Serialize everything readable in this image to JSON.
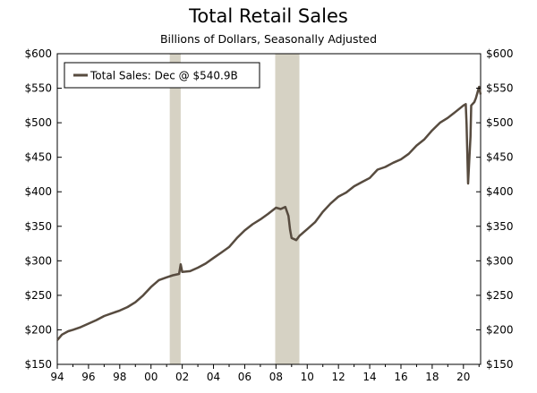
{
  "chart_data": {
    "type": "line",
    "title": "Total Retail Sales",
    "subtitle": "Billions of Dollars, Seasonally Adjusted",
    "xlabel": "",
    "ylabel": "",
    "xlim": [
      1994,
      2021.1
    ],
    "ylim": [
      150,
      600
    ],
    "x_ticks": [
      1994,
      1996,
      1998,
      2000,
      2002,
      2004,
      2006,
      2008,
      2010,
      2012,
      2014,
      2016,
      2018,
      2020
    ],
    "x_tick_labels": [
      "94",
      "96",
      "98",
      "00",
      "02",
      "04",
      "06",
      "08",
      "10",
      "12",
      "14",
      "16",
      "18",
      "20"
    ],
    "y_ticks": [
      150,
      200,
      250,
      300,
      350,
      400,
      450,
      500,
      550,
      600
    ],
    "y_tick_labels": [
      "$150",
      "$200",
      "$250",
      "$300",
      "$350",
      "$400",
      "$450",
      "$500",
      "$550",
      "$600"
    ],
    "grid": false,
    "legend": {
      "label": "Total Sales: Dec @ $540.9B",
      "placement": "top-left"
    },
    "recessions": [
      {
        "start": 2001.2,
        "end": 2001.9
      },
      {
        "start": 2007.95,
        "end": 2009.5
      }
    ],
    "colors": {
      "line": "#574b3f",
      "recession": "#d6d2c4",
      "axis": "#000000"
    },
    "series": [
      {
        "name": "Total Sales",
        "points": [
          [
            1994.0,
            185
          ],
          [
            1994.3,
            193
          ],
          [
            1994.7,
            198
          ],
          [
            1995.0,
            200
          ],
          [
            1995.5,
            204
          ],
          [
            1996.0,
            209
          ],
          [
            1996.5,
            214
          ],
          [
            1997.0,
            220
          ],
          [
            1997.5,
            224
          ],
          [
            1998.0,
            228
          ],
          [
            1998.5,
            233
          ],
          [
            1999.0,
            240
          ],
          [
            1999.5,
            250
          ],
          [
            2000.0,
            262
          ],
          [
            2000.5,
            272
          ],
          [
            2001.0,
            276
          ],
          [
            2001.4,
            279
          ],
          [
            2001.8,
            281
          ],
          [
            2001.9,
            295
          ],
          [
            2002.0,
            284
          ],
          [
            2002.5,
            285
          ],
          [
            2003.0,
            290
          ],
          [
            2003.5,
            296
          ],
          [
            2004.0,
            304
          ],
          [
            2004.5,
            312
          ],
          [
            2005.0,
            320
          ],
          [
            2005.5,
            333
          ],
          [
            2006.0,
            344
          ],
          [
            2006.5,
            353
          ],
          [
            2007.0,
            360
          ],
          [
            2007.5,
            368
          ],
          [
            2008.0,
            377
          ],
          [
            2008.3,
            375
          ],
          [
            2008.6,
            378
          ],
          [
            2008.8,
            365
          ],
          [
            2008.9,
            345
          ],
          [
            2009.0,
            333
          ],
          [
            2009.3,
            330
          ],
          [
            2009.5,
            336
          ],
          [
            2009.8,
            342
          ],
          [
            2010.0,
            346
          ],
          [
            2010.5,
            356
          ],
          [
            2011.0,
            371
          ],
          [
            2011.5,
            383
          ],
          [
            2012.0,
            393
          ],
          [
            2012.5,
            399
          ],
          [
            2013.0,
            408
          ],
          [
            2013.5,
            414
          ],
          [
            2014.0,
            420
          ],
          [
            2014.5,
            432
          ],
          [
            2015.0,
            436
          ],
          [
            2015.5,
            442
          ],
          [
            2016.0,
            447
          ],
          [
            2016.5,
            455
          ],
          [
            2017.0,
            467
          ],
          [
            2017.5,
            476
          ],
          [
            2018.0,
            489
          ],
          [
            2018.5,
            500
          ],
          [
            2019.0,
            507
          ],
          [
            2019.5,
            516
          ],
          [
            2020.0,
            525
          ],
          [
            2020.15,
            527
          ],
          [
            2020.2,
            498
          ],
          [
            2020.3,
            412
          ],
          [
            2020.45,
            480
          ],
          [
            2020.5,
            525
          ],
          [
            2020.7,
            530
          ],
          [
            2020.8,
            536
          ],
          [
            2021.0,
            552
          ],
          [
            2021.1,
            541
          ]
        ]
      }
    ]
  }
}
